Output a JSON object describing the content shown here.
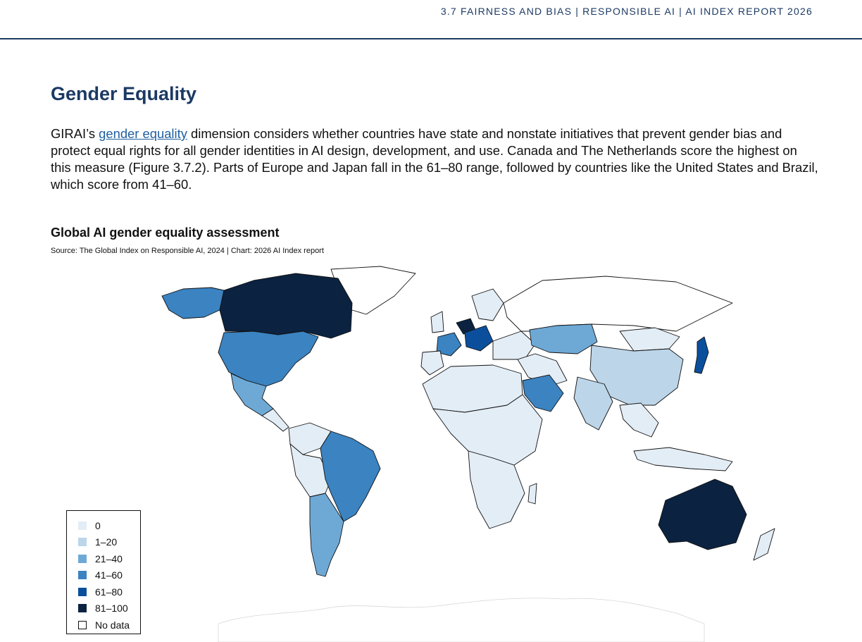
{
  "header": {
    "running_title": "3.7 FAIRNESS AND BIAS  |  RESPONSIBLE AI  |  AI INDEX REPORT 2026"
  },
  "section": {
    "title": "Gender Equality",
    "para_start": "GIRAI’s ",
    "para_link": "gender equality",
    "para_rest": " dimension considers whether countries have state and nonstate initiatives that pre­vent gender bias and protect equal rights for all gender identities in AI design, development, and use. Canada and The Netherlands score the highest on this measure (Figure 3.7.2). Parts of Europe and Japan fall in the 61–80 range, followed by countries like the United States and Brazil, which score from 41–60."
  },
  "chart_data": {
    "type": "choropleth",
    "title": "Global AI gender equality assessment",
    "source": "Source: The Global Index on Responsible AI, 2024  | Chart: 2026 AI Index report",
    "legend_placement": "bottom-left",
    "legend": [
      {
        "label": "0",
        "color": "#e3edf6"
      },
      {
        "label": "1–20",
        "color": "#bcd5e9"
      },
      {
        "label": "21–40",
        "color": "#6ea9d6"
      },
      {
        "label": "41–60",
        "color": "#3b83c1"
      },
      {
        "label": "61–80",
        "color": "#0b4f9c"
      },
      {
        "label": "81–100",
        "color": "#0b2240"
      },
      {
        "label": "No data",
        "color": "#ffffff"
      }
    ],
    "regions": [
      {
        "name": "Canada",
        "bin": "81–100"
      },
      {
        "name": "Netherlands",
        "bin": "81–100"
      },
      {
        "name": "Australia",
        "bin": "81–100"
      },
      {
        "name": "United States",
        "bin": "41–60"
      },
      {
        "name": "Brazil",
        "bin": "41–60"
      },
      {
        "name": "Saudi Arabia",
        "bin": "41–60"
      },
      {
        "name": "Alaska",
        "bin": "41–60"
      },
      {
        "name": "Japan",
        "bin": "61–80"
      },
      {
        "name": "Germany",
        "bin": "61–80"
      },
      {
        "name": "France",
        "bin": "41–60"
      },
      {
        "name": "Mexico",
        "bin": "21–40"
      },
      {
        "name": "Argentina",
        "bin": "21–40"
      },
      {
        "name": "Kazakhstan",
        "bin": "21–40"
      },
      {
        "name": "China",
        "bin": "1–20"
      },
      {
        "name": "India",
        "bin": "1–20"
      },
      {
        "name": "Russia",
        "bin": "No data"
      },
      {
        "name": "Greenland",
        "bin": "No data"
      },
      {
        "name": "Antarctica",
        "bin": "No data"
      },
      {
        "name": "Mongolia",
        "bin": "0"
      }
    ]
  }
}
